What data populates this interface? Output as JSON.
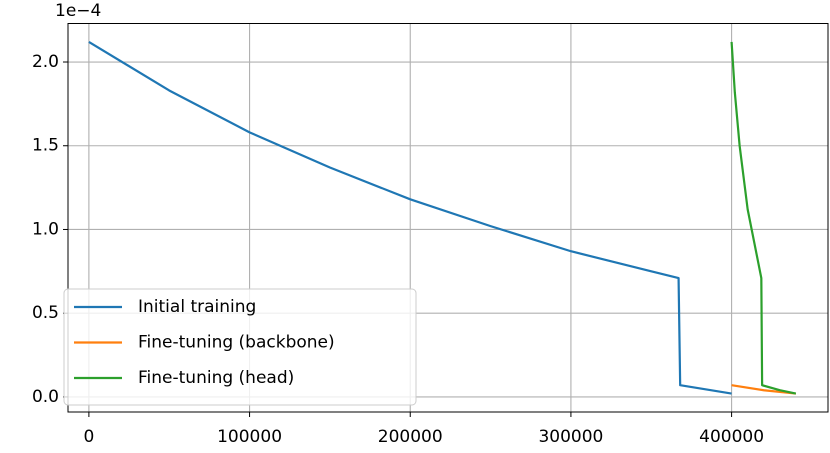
{
  "chart_data": {
    "type": "line",
    "y_offset_label": "1e−4",
    "series": [
      {
        "name": "Initial training",
        "color": "#1f77b4",
        "x": [
          0,
          50000,
          100000,
          150000,
          200000,
          250000,
          300000,
          350000,
          367000,
          368000,
          400000
        ],
        "values": [
          2.12,
          1.83,
          1.58,
          1.37,
          1.18,
          1.02,
          0.87,
          0.75,
          0.71,
          0.07,
          0.02
        ]
      },
      {
        "name": "Fine-tuning (backbone)",
        "color": "#ff7f0e",
        "x": [
          400000,
          420000,
          440000
        ],
        "values": [
          0.07,
          0.04,
          0.02
        ]
      },
      {
        "name": "Fine-tuning (head)",
        "color": "#2ca02c",
        "x": [
          400000,
          402000,
          405000,
          410000,
          418500,
          419000,
          430000,
          440000
        ],
        "values": [
          2.12,
          1.82,
          1.5,
          1.12,
          0.71,
          0.07,
          0.04,
          0.02
        ]
      }
    ],
    "xlim": [
      -13000,
      460000
    ],
    "ylim": [
      -0.09,
      2.23
    ],
    "xticks": [
      0,
      100000,
      200000,
      300000,
      400000
    ],
    "yticks": [
      {
        "value": 0,
        "label": "0.0"
      },
      0.5,
      {
        "value": 1,
        "label": "1.0"
      },
      1.5,
      {
        "value": 2,
        "label": "2.0"
      }
    ],
    "grid": true,
    "legend": "lower left"
  }
}
